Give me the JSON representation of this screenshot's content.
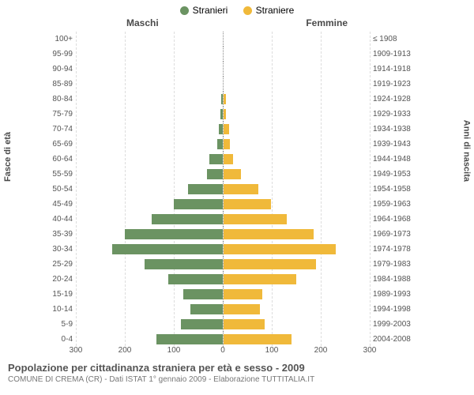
{
  "legend": {
    "male": {
      "label": "Stranieri",
      "color": "#6b9362"
    },
    "female": {
      "label": "Straniere",
      "color": "#f0b93a"
    }
  },
  "col_headers": {
    "left": "Maschi",
    "right": "Femmine"
  },
  "axis_titles": {
    "left": "Fasce di età",
    "right": "Anni di nascita"
  },
  "x_axis": {
    "max": 300,
    "ticks_left": [
      300,
      200,
      100,
      0
    ],
    "ticks_right": [
      0,
      100,
      200,
      300
    ]
  },
  "colors": {
    "male_bar": "#6b9362",
    "female_bar": "#f0b93a",
    "grid": "#dddddd",
    "text": "#555555",
    "background": "#ffffff"
  },
  "rows": [
    {
      "age": "100+",
      "birth": "≤ 1908",
      "m": 0,
      "f": 0
    },
    {
      "age": "95-99",
      "birth": "1909-1913",
      "m": 0,
      "f": 0
    },
    {
      "age": "90-94",
      "birth": "1914-1918",
      "m": 0,
      "f": 0
    },
    {
      "age": "85-89",
      "birth": "1919-1923",
      "m": 0,
      "f": 0
    },
    {
      "age": "80-84",
      "birth": "1924-1928",
      "m": 3,
      "f": 6
    },
    {
      "age": "75-79",
      "birth": "1929-1933",
      "m": 4,
      "f": 5
    },
    {
      "age": "70-74",
      "birth": "1934-1938",
      "m": 8,
      "f": 12
    },
    {
      "age": "65-69",
      "birth": "1939-1943",
      "m": 10,
      "f": 14
    },
    {
      "age": "60-64",
      "birth": "1944-1948",
      "m": 26,
      "f": 20
    },
    {
      "age": "55-59",
      "birth": "1949-1953",
      "m": 32,
      "f": 36
    },
    {
      "age": "50-54",
      "birth": "1954-1958",
      "m": 70,
      "f": 72
    },
    {
      "age": "45-49",
      "birth": "1959-1963",
      "m": 100,
      "f": 98
    },
    {
      "age": "40-44",
      "birth": "1964-1968",
      "m": 145,
      "f": 130
    },
    {
      "age": "35-39",
      "birth": "1969-1973",
      "m": 200,
      "f": 185
    },
    {
      "age": "30-34",
      "birth": "1974-1978",
      "m": 225,
      "f": 230
    },
    {
      "age": "25-29",
      "birth": "1979-1983",
      "m": 160,
      "f": 190
    },
    {
      "age": "20-24",
      "birth": "1984-1988",
      "m": 110,
      "f": 150
    },
    {
      "age": "15-19",
      "birth": "1989-1993",
      "m": 80,
      "f": 80
    },
    {
      "age": "10-14",
      "birth": "1994-1998",
      "m": 65,
      "f": 75
    },
    {
      "age": "5-9",
      "birth": "1999-2003",
      "m": 85,
      "f": 85
    },
    {
      "age": "0-4",
      "birth": "2004-2008",
      "m": 135,
      "f": 140
    }
  ],
  "footer": {
    "title": "Popolazione per cittadinanza straniera per età e sesso - 2009",
    "subtitle": "COMUNE DI CREMA (CR) - Dati ISTAT 1° gennaio 2009 - Elaborazione TUTTITALIA.IT"
  }
}
